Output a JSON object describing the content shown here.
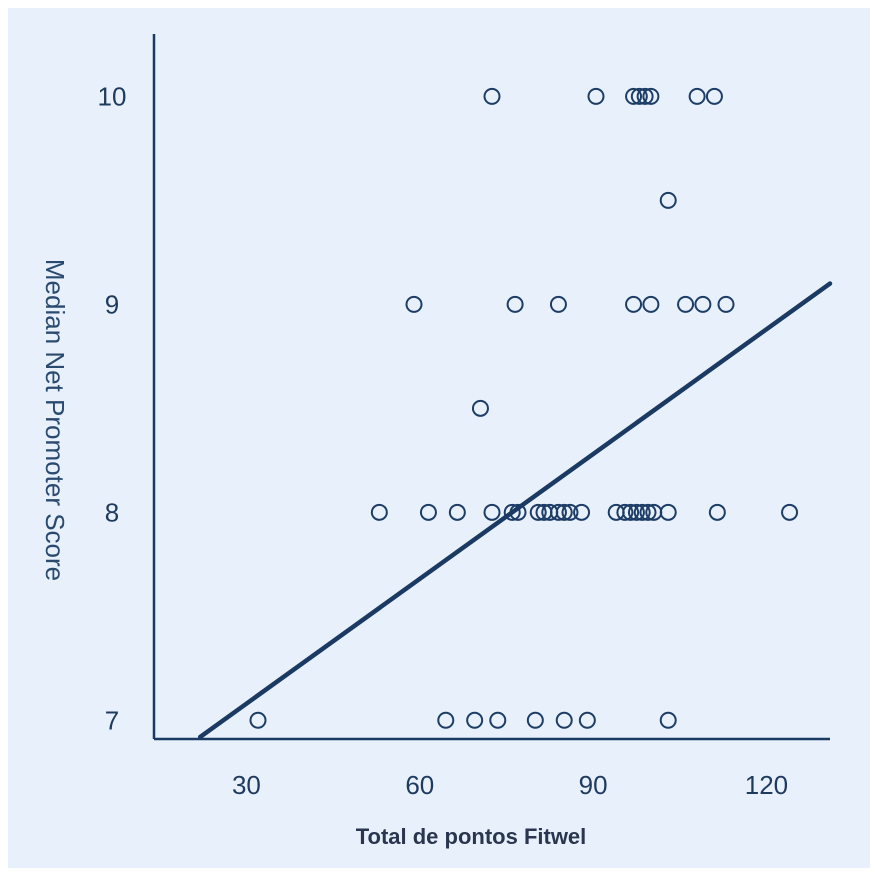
{
  "chart_data": {
    "type": "scatter",
    "title": "",
    "xlabel": "Total de pontos Fitwel",
    "ylabel": "Median Net Promoter Score",
    "xlim": [
      14,
      131
    ],
    "ylim": [
      6.91,
      10.3
    ],
    "x_ticks": [
      30,
      60,
      90,
      120
    ],
    "y_ticks": [
      7,
      8,
      9,
      10
    ],
    "grid": false,
    "colors": {
      "marker": "#1d3d66",
      "trendline": "#1b3a63",
      "axis": "#1b3a63",
      "background": "#e8f1fb"
    },
    "series": [
      {
        "points": [
          [
            72.5,
            10
          ],
          [
            90.5,
            10
          ],
          [
            97,
            10
          ],
          [
            98,
            10
          ],
          [
            99,
            10
          ],
          [
            100,
            10
          ],
          [
            108,
            10
          ],
          [
            111,
            10
          ],
          [
            103,
            9.5
          ],
          [
            59,
            9
          ],
          [
            76.5,
            9
          ],
          [
            84,
            9
          ],
          [
            97,
            9
          ],
          [
            100,
            9
          ],
          [
            106,
            9
          ],
          [
            109,
            9
          ],
          [
            113,
            9
          ],
          [
            70.5,
            8.5
          ],
          [
            53,
            8
          ],
          [
            61.5,
            8
          ],
          [
            66.5,
            8
          ],
          [
            72.5,
            8
          ],
          [
            76,
            8
          ],
          [
            77,
            8
          ],
          [
            80.5,
            8
          ],
          [
            81.5,
            8
          ],
          [
            82.5,
            8
          ],
          [
            84,
            8
          ],
          [
            85,
            8
          ],
          [
            86,
            8
          ],
          [
            88,
            8
          ],
          [
            94,
            8
          ],
          [
            95.5,
            8
          ],
          [
            96.5,
            8
          ],
          [
            97.5,
            8
          ],
          [
            98.5,
            8
          ],
          [
            99.5,
            8
          ],
          [
            100.5,
            8
          ],
          [
            103,
            8
          ],
          [
            111.5,
            8
          ],
          [
            124,
            8
          ],
          [
            32,
            7
          ],
          [
            64.5,
            7
          ],
          [
            69.5,
            7
          ],
          [
            73.5,
            7
          ],
          [
            80,
            7
          ],
          [
            85,
            7
          ],
          [
            89,
            7
          ],
          [
            103,
            7
          ]
        ]
      }
    ],
    "trendline": {
      "x": [
        22,
        131
      ],
      "y": [
        6.92,
        9.1
      ]
    }
  }
}
